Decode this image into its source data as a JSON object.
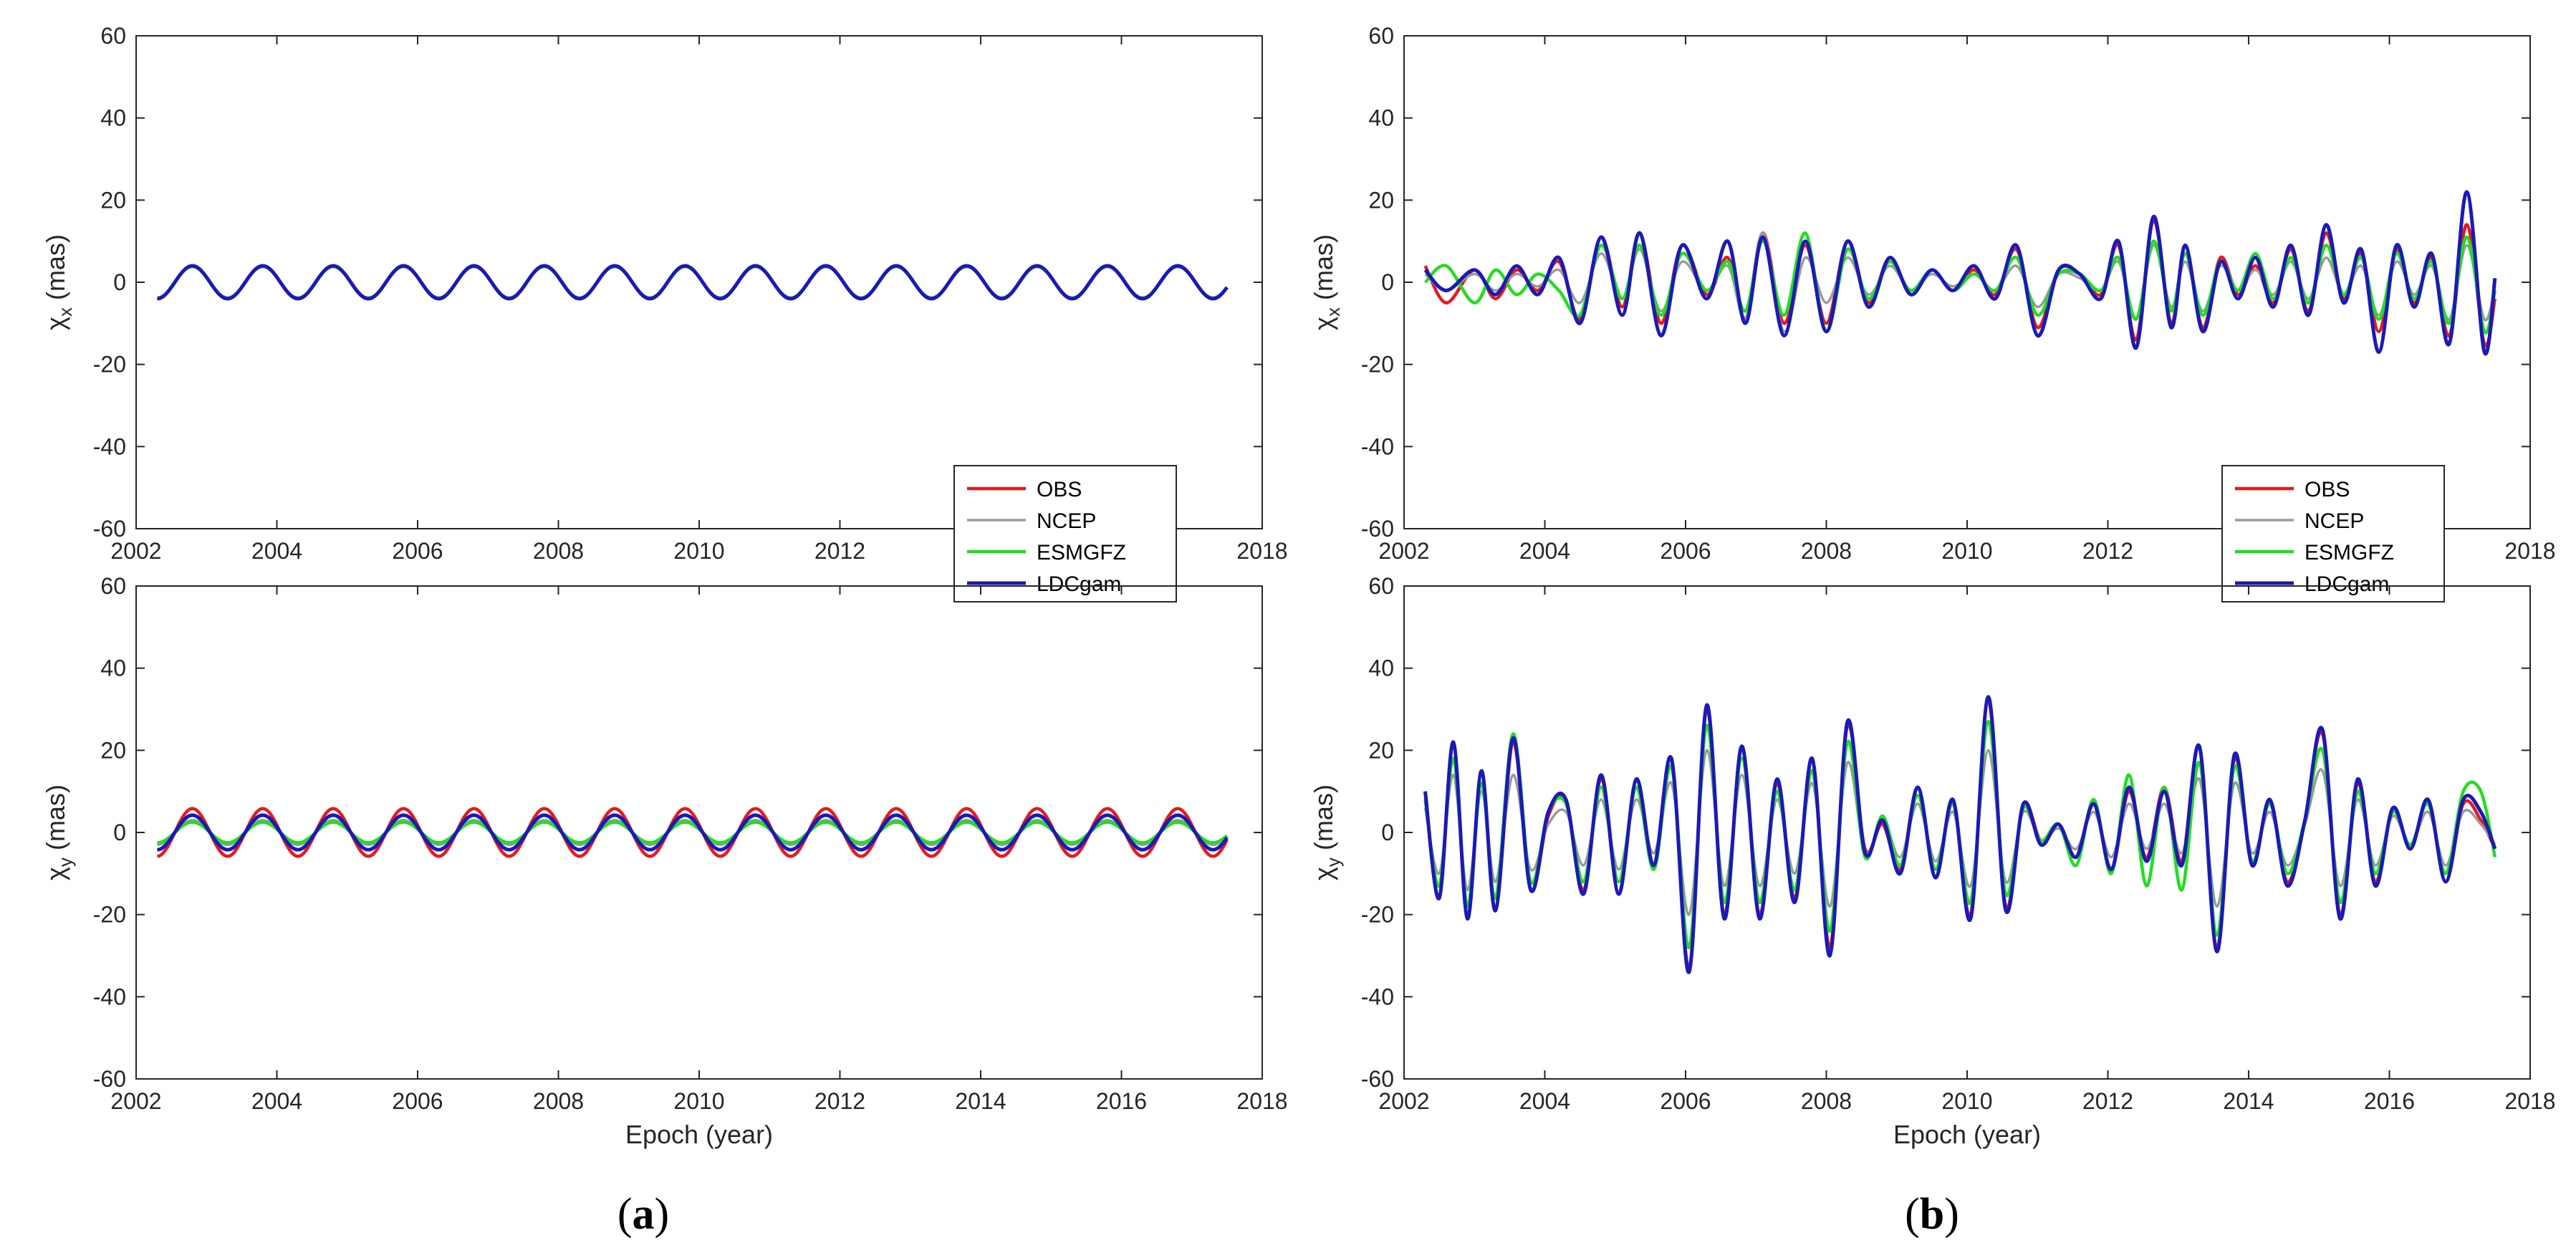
{
  "figure": {
    "panel_labels": [
      {
        "open": "(",
        "letter": "a",
        "close": ")"
      },
      {
        "open": "(",
        "letter": "b",
        "close": ")"
      }
    ]
  },
  "legend": {
    "entries": [
      {
        "name": "OBS",
        "color": "#e8191c"
      },
      {
        "name": "NCEP",
        "color": "#9a9a9a"
      },
      {
        "name": "ESMGFZ",
        "color": "#22dd22"
      },
      {
        "name": "LDCgam",
        "color": "#1a1ab8"
      }
    ]
  },
  "chart_data": [
    {
      "id": "a-top",
      "type": "line",
      "panel": "a",
      "xlabel": "",
      "ylabel": {
        "main": "χ",
        "sub": "x",
        "unit": "(mas)"
      },
      "xlim": [
        2002,
        2018
      ],
      "ylim": [
        -60,
        60
      ],
      "xticks": [
        2002,
        2004,
        2006,
        2008,
        2010,
        2012,
        2014,
        2016,
        2018
      ],
      "yticks": [
        -60,
        -40,
        -20,
        0,
        20,
        40,
        60
      ],
      "legend": "bottom-right",
      "x_range": [
        2002.3,
        2017.5
      ],
      "series": [
        {
          "name": "OBS",
          "model": "annual",
          "amplitude": 4.0
        },
        {
          "name": "NCEP",
          "model": "annual",
          "amplitude": 3.7
        },
        {
          "name": "ESMGFZ",
          "model": "annual",
          "amplitude": 3.9
        },
        {
          "name": "LDCgam",
          "model": "annual",
          "amplitude": 4.0
        }
      ]
    },
    {
      "id": "a-bottom",
      "type": "line",
      "panel": "a",
      "xlabel": "Epoch (year)",
      "ylabel": {
        "main": "χ",
        "sub": "y",
        "unit": "(mas)"
      },
      "xlim": [
        2002,
        2018
      ],
      "ylim": [
        -60,
        60
      ],
      "xticks": [
        2002,
        2004,
        2006,
        2008,
        2010,
        2012,
        2014,
        2016,
        2018
      ],
      "yticks": [
        -60,
        -40,
        -20,
        0,
        20,
        40,
        60
      ],
      "x_range": [
        2002.3,
        2017.5
      ],
      "series": [
        {
          "name": "OBS",
          "model": "annual",
          "amplitude": 5.8
        },
        {
          "name": "NCEP",
          "model": "annual",
          "amplitude": 3.0
        },
        {
          "name": "ESMGFZ",
          "model": "annual",
          "amplitude": 2.5
        },
        {
          "name": "LDCgam",
          "model": "annual",
          "amplitude": 4.2
        }
      ]
    },
    {
      "id": "b-top",
      "type": "line",
      "panel": "b",
      "xlabel": "",
      "ylabel": {
        "main": "χ",
        "sub": "x",
        "unit": "(mas)"
      },
      "xlim": [
        2002,
        2018
      ],
      "ylim": [
        -60,
        60
      ],
      "xticks": [
        2002,
        2004,
        2006,
        2008,
        2010,
        2012,
        2014,
        2016,
        2018
      ],
      "yticks": [
        -60,
        -40,
        -20,
        0,
        20,
        40,
        60
      ],
      "legend": "bottom-right",
      "x": [
        2002.3,
        2002.6,
        2003.0,
        2003.3,
        2003.6,
        2003.9,
        2004.2,
        2004.5,
        2004.8,
        2005.1,
        2005.35,
        2005.65,
        2005.95,
        2006.3,
        2006.6,
        2006.85,
        2007.1,
        2007.4,
        2007.7,
        2008.0,
        2008.3,
        2008.6,
        2008.9,
        2009.2,
        2009.5,
        2009.8,
        2010.1,
        2010.4,
        2010.7,
        2011.0,
        2011.3,
        2011.6,
        2011.9,
        2012.15,
        2012.4,
        2012.65,
        2012.9,
        2013.1,
        2013.35,
        2013.6,
        2013.85,
        2014.1,
        2014.35,
        2014.6,
        2014.85,
        2015.1,
        2015.35,
        2015.6,
        2015.85,
        2016.1,
        2016.35,
        2016.6,
        2016.85,
        2017.1,
        2017.35,
        2017.5
      ],
      "series": [
        {
          "name": "OBS",
          "values": [
            4,
            -5,
            3,
            -4,
            3,
            -2,
            5,
            -9,
            11,
            -6,
            12,
            -10,
            9,
            -3,
            6,
            -9,
            12,
            -10,
            9,
            -10,
            10,
            -5,
            6,
            -3,
            3,
            -2,
            3,
            -3,
            8,
            -11,
            3,
            2,
            -3,
            9,
            -14,
            15,
            -10,
            9,
            -11,
            6,
            -3,
            4,
            -5,
            8,
            -7,
            12,
            -4,
            7,
            -12,
            8,
            -5,
            6,
            -13,
            14,
            -15,
            -4
          ]
        },
        {
          "name": "NCEP",
          "values": [
            2,
            -2,
            2,
            -2,
            2,
            -1,
            3,
            -5,
            7,
            -4,
            8,
            -7,
            5,
            -2,
            4,
            -9,
            12,
            -12,
            6,
            -5,
            6,
            -3,
            4,
            -2,
            2,
            -1,
            2,
            -2,
            4,
            -6,
            2,
            1,
            -2,
            5,
            -9,
            9,
            -6,
            5,
            -7,
            4,
            -2,
            3,
            -3,
            5,
            -4,
            6,
            -3,
            4,
            -8,
            5,
            -3,
            4,
            -9,
            9,
            -9,
            -1
          ]
        },
        {
          "name": "ESMGFZ",
          "values": [
            0,
            4,
            -5,
            3,
            -3,
            2,
            -2,
            -8,
            9,
            -4,
            9,
            -8,
            7,
            -2,
            5,
            -7,
            10,
            -8,
            12,
            -12,
            8,
            -4,
            5,
            -2,
            3,
            -2,
            2,
            -2,
            6,
            -8,
            2,
            2,
            -2,
            6,
            -9,
            10,
            -7,
            7,
            -8,
            5,
            -2,
            7,
            -4,
            6,
            -5,
            9,
            -3,
            6,
            -9,
            7,
            -4,
            5,
            -10,
            11,
            -12,
            -2
          ]
        },
        {
          "name": "LDCgam",
          "values": [
            3,
            -2,
            3,
            -3,
            4,
            -3,
            6,
            -10,
            11,
            -8,
            12,
            -13,
            9,
            -4,
            10,
            -10,
            11,
            -13,
            10,
            -12,
            10,
            -6,
            6,
            -3,
            3,
            -2,
            4,
            -4,
            9,
            -13,
            3,
            2,
            -4,
            10,
            -16,
            16,
            -11,
            9,
            -12,
            5,
            -4,
            6,
            -6,
            9,
            -8,
            14,
            -5,
            8,
            -17,
            9,
            -6,
            7,
            -15,
            22,
            -17,
            1
          ]
        }
      ]
    },
    {
      "id": "b-bottom",
      "type": "line",
      "panel": "b",
      "xlabel": "Epoch (year)",
      "ylabel": {
        "main": "χ",
        "sub": "y",
        "unit": "(mas)"
      },
      "xlim": [
        2002,
        2018
      ],
      "ylim": [
        -60,
        60
      ],
      "xticks": [
        2002,
        2004,
        2006,
        2008,
        2010,
        2012,
        2014,
        2016,
        2018
      ],
      "yticks": [
        -60,
        -40,
        -20,
        0,
        20,
        40,
        60
      ],
      "x": [
        2002.3,
        2002.5,
        2002.7,
        2002.9,
        2003.1,
        2003.3,
        2003.55,
        2003.8,
        2004.05,
        2004.3,
        2004.55,
        2004.8,
        2005.05,
        2005.3,
        2005.55,
        2005.8,
        2006.05,
        2006.3,
        2006.55,
        2006.8,
        2007.05,
        2007.3,
        2007.55,
        2007.8,
        2008.05,
        2008.3,
        2008.55,
        2008.8,
        2009.05,
        2009.3,
        2009.55,
        2009.8,
        2010.05,
        2010.3,
        2010.55,
        2010.8,
        2011.05,
        2011.3,
        2011.55,
        2011.8,
        2012.05,
        2012.3,
        2012.55,
        2012.8,
        2013.05,
        2013.3,
        2013.55,
        2013.8,
        2014.05,
        2014.3,
        2014.55,
        2014.8,
        2015.05,
        2015.3,
        2015.55,
        2015.8,
        2016.05,
        2016.3,
        2016.55,
        2016.8,
        2017.05,
        2017.3,
        2017.5
      ],
      "series": [
        {
          "name": "OBS",
          "values": [
            10,
            -16,
            22,
            -21,
            15,
            -19,
            22,
            -14,
            4,
            8,
            -14,
            13,
            -15,
            13,
            -8,
            18,
            -33,
            30,
            -20,
            21,
            -20,
            12,
            -16,
            18,
            -28,
            26,
            -4,
            2,
            -9,
            11,
            -11,
            8,
            -20,
            32,
            -18,
            7,
            -2,
            2,
            -6,
            7,
            -9,
            10,
            -6,
            11,
            -7,
            21,
            -28,
            18,
            -8,
            8,
            -12,
            3,
            24,
            -20,
            12,
            -12,
            6,
            -4,
            8,
            -12,
            7,
            3,
            -4
          ]
        },
        {
          "name": "NCEP",
          "values": [
            6,
            -10,
            14,
            -14,
            10,
            -12,
            14,
            -9,
            2,
            5,
            -8,
            8,
            -9,
            8,
            -5,
            12,
            -20,
            20,
            -13,
            14,
            -13,
            8,
            -10,
            12,
            -18,
            17,
            -5,
            3,
            -6,
            7,
            -7,
            5,
            -13,
            20,
            -12,
            5,
            -2,
            1,
            -4,
            5,
            -6,
            7,
            -4,
            7,
            -5,
            13,
            -18,
            12,
            -5,
            5,
            -8,
            2,
            15,
            -13,
            8,
            -8,
            4,
            -3,
            5,
            -8,
            5,
            2,
            -3
          ]
        },
        {
          "name": "ESMGFZ",
          "values": [
            8,
            -13,
            18,
            -18,
            12,
            -16,
            24,
            -12,
            5,
            7,
            -12,
            11,
            -12,
            11,
            -9,
            16,
            -28,
            26,
            -17,
            18,
            -17,
            10,
            -14,
            15,
            -24,
            22,
            -6,
            4,
            -8,
            9,
            -9,
            7,
            -17,
            27,
            -15,
            6,
            -2,
            2,
            -8,
            8,
            -10,
            14,
            -13,
            11,
            -14,
            17,
            -25,
            16,
            -7,
            7,
            -10,
            3,
            20,
            -17,
            10,
            -10,
            5,
            -3,
            7,
            -10,
            10,
            10,
            -6
          ]
        },
        {
          "name": "LDCgam",
          "values": [
            10,
            -16,
            22,
            -21,
            15,
            -19,
            23,
            -14,
            5,
            8,
            -15,
            14,
            -15,
            13,
            -8,
            18,
            -34,
            31,
            -21,
            21,
            -21,
            13,
            -17,
            18,
            -30,
            27,
            -5,
            3,
            -10,
            11,
            -11,
            8,
            -21,
            33,
            -19,
            7,
            -3,
            2,
            -6,
            7,
            -9,
            11,
            -7,
            10,
            -8,
            21,
            -29,
            19,
            -8,
            8,
            -13,
            3,
            25,
            -21,
            13,
            -13,
            6,
            -4,
            8,
            -12,
            8,
            5,
            -4
          ]
        }
      ]
    }
  ]
}
